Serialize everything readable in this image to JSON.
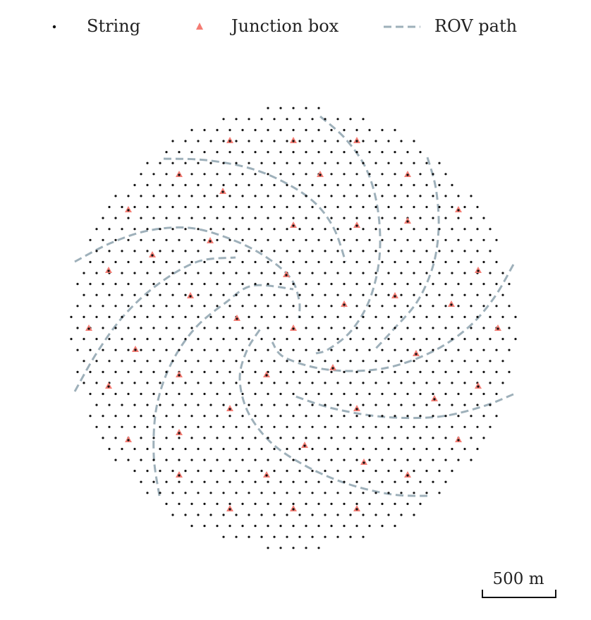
{
  "chart_data": {
    "type": "scatter",
    "title": "",
    "xlabel": "",
    "ylabel": "",
    "grid": false,
    "axes_visible": false,
    "units": "m",
    "xlim": [
      -1700,
      1700
    ],
    "ylim": [
      -1700,
      1700
    ],
    "legend": {
      "placement": "top",
      "entries": [
        {
          "label": "String",
          "marker": "dot",
          "color": "#111111"
        },
        {
          "label": "Junction box",
          "marker": "triangle",
          "color": "#f47c73"
        },
        {
          "label": "ROV path",
          "marker": "dashed-line",
          "color": "#9eb0ba"
        }
      ]
    },
    "scale_bar": {
      "label": "500 m",
      "length": 500
    },
    "strings": {
      "layout": "hexagonal grid clipped to a circle",
      "spacing": 90,
      "radius": 1580
    },
    "junction_boxes": [
      [
        -450,
        1330
      ],
      [
        0,
        1330
      ],
      [
        450,
        1330
      ],
      [
        -810,
        1090
      ],
      [
        -500,
        970
      ],
      [
        190,
        1090
      ],
      [
        810,
        1090
      ],
      [
        -1170,
        840
      ],
      [
        0,
        730
      ],
      [
        450,
        730
      ],
      [
        810,
        760
      ],
      [
        1170,
        840
      ],
      [
        -590,
        620
      ],
      [
        -1000,
        520
      ],
      [
        -1310,
        410
      ],
      [
        -50,
        380
      ],
      [
        1310,
        410
      ],
      [
        -730,
        230
      ],
      [
        720,
        230
      ],
      [
        1120,
        170
      ],
      [
        360,
        170
      ],
      [
        -400,
        70
      ],
      [
        0,
        0
      ],
      [
        -1450,
        0
      ],
      [
        1450,
        0
      ],
      [
        -1120,
        -150
      ],
      [
        870,
        -180
      ],
      [
        280,
        -280
      ],
      [
        -810,
        -330
      ],
      [
        -190,
        -330
      ],
      [
        -1310,
        -410
      ],
      [
        1310,
        -410
      ],
      [
        1000,
        -500
      ],
      [
        -450,
        -570
      ],
      [
        450,
        -570
      ],
      [
        -1170,
        -790
      ],
      [
        -810,
        -740
      ],
      [
        1170,
        -790
      ],
      [
        80,
        -830
      ],
      [
        -810,
        -1040
      ],
      [
        -190,
        -1040
      ],
      [
        500,
        -950
      ],
      [
        810,
        -1040
      ],
      [
        -450,
        -1280
      ],
      [
        0,
        -1280
      ],
      [
        450,
        -1280
      ]
    ],
    "rov_paths": [
      [
        [
          1560,
          450
        ],
        [
          1420,
          210
        ],
        [
          1230,
          -5
        ],
        [
          960,
          -180
        ],
        [
          620,
          -290
        ],
        [
          240,
          -295
        ],
        [
          -60,
          -210
        ],
        [
          -150,
          -100
        ]
      ],
      [
        [
          1560,
          -470
        ],
        [
          1330,
          -560
        ],
        [
          1020,
          -630
        ],
        [
          640,
          -630
        ],
        [
          280,
          -570
        ],
        [
          0,
          -480
        ]
      ],
      [
        [
          950,
          -1190
        ],
        [
          700,
          -1180
        ],
        [
          400,
          -1110
        ],
        [
          110,
          -990
        ],
        [
          -150,
          -820
        ],
        [
          -320,
          -600
        ],
        [
          -380,
          -360
        ],
        [
          -330,
          -160
        ],
        [
          -230,
          0
        ]
      ],
      [
        [
          -950,
          -1190
        ],
        [
          -990,
          -900
        ],
        [
          -970,
          -560
        ],
        [
          -870,
          -260
        ],
        [
          -700,
          -5
        ],
        [
          -480,
          180
        ],
        [
          -290,
          300
        ],
        [
          0,
          275
        ]
      ],
      [
        [
          -1550,
          -450
        ],
        [
          -1390,
          -170
        ],
        [
          -1200,
          90
        ],
        [
          -960,
          310
        ],
        [
          -680,
          470
        ],
        [
          -410,
          500
        ]
      ],
      [
        [
          -1550,
          470
        ],
        [
          -1300,
          600
        ],
        [
          -1030,
          690
        ],
        [
          -740,
          710
        ],
        [
          -470,
          640
        ],
        [
          -220,
          520
        ],
        [
          -25,
          360
        ],
        [
          40,
          200
        ],
        [
          40,
          70
        ]
      ],
      [
        [
          -920,
          1200
        ],
        [
          -620,
          1190
        ],
        [
          -300,
          1130
        ],
        [
          -40,
          1020
        ],
        [
          160,
          880
        ],
        [
          290,
          700
        ],
        [
          370,
          470
        ]
      ],
      [
        [
          190,
          1500
        ],
        [
          370,
          1340
        ],
        [
          520,
          1120
        ],
        [
          600,
          830
        ],
        [
          610,
          500
        ],
        [
          540,
          200
        ],
        [
          410,
          -20
        ],
        [
          250,
          -150
        ],
        [
          160,
          -180
        ]
      ],
      [
        [
          950,
          1210
        ],
        [
          1010,
          990
        ],
        [
          1030,
          710
        ],
        [
          990,
          440
        ],
        [
          880,
          190
        ],
        [
          710,
          -10
        ],
        [
          580,
          -150
        ]
      ]
    ]
  }
}
